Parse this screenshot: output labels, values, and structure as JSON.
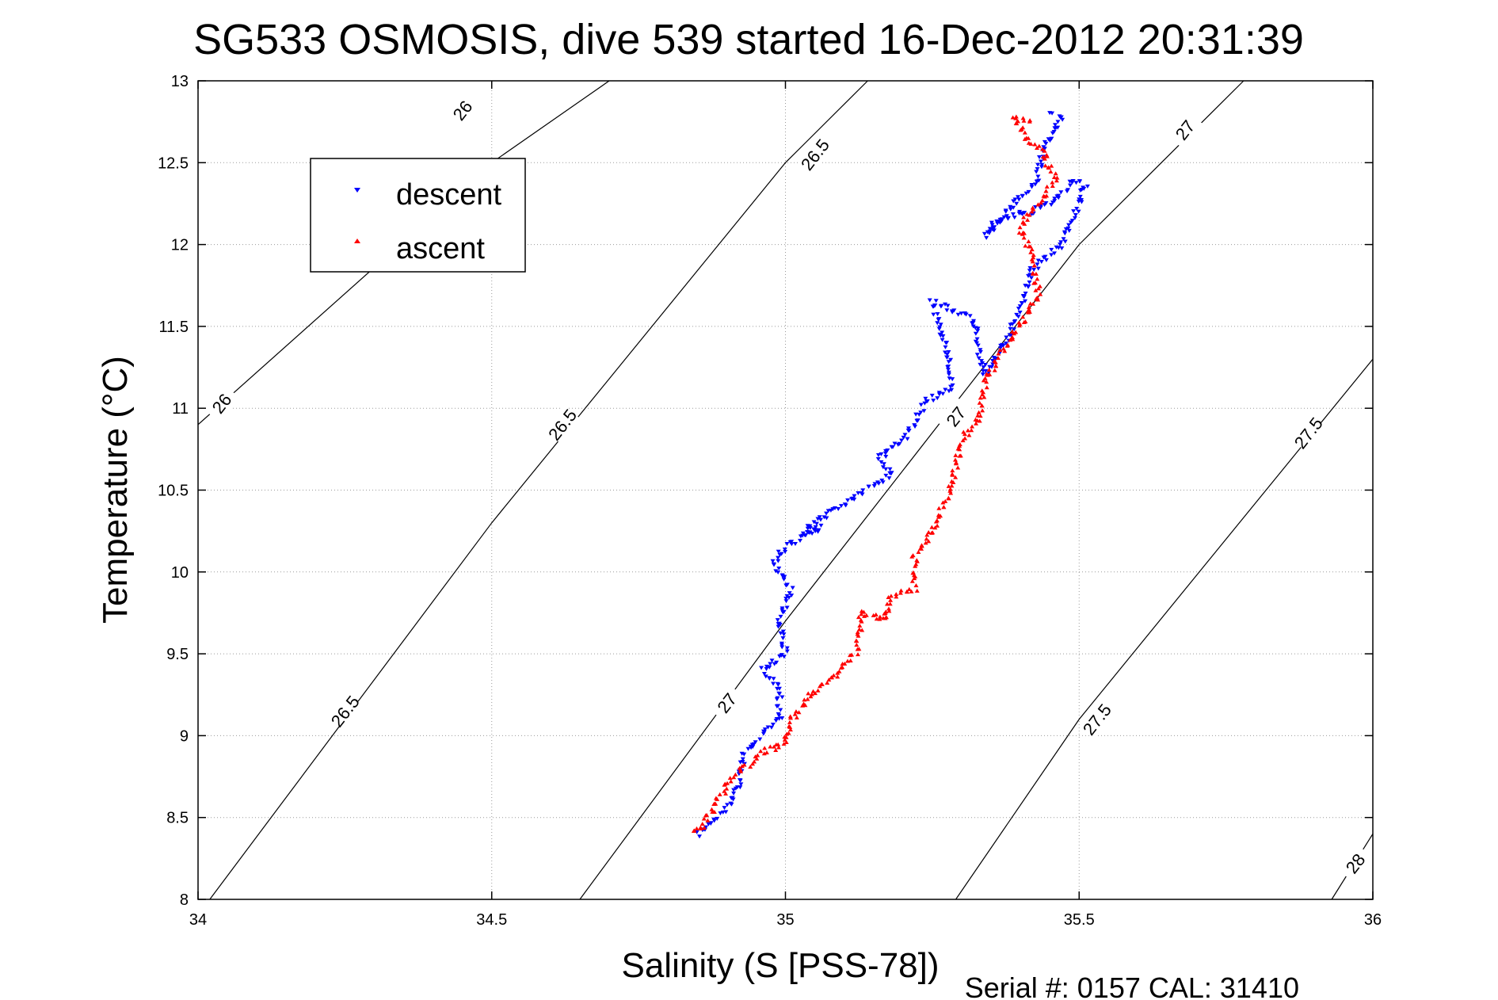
{
  "chart_data": {
    "type": "scatter",
    "title": "SG533 OSMOSIS, dive 539 started 16-Dec-2012 20:31:39",
    "xlabel": "Salinity (S [PSS-78])",
    "ylabel": "Temperature (°C)",
    "xlim": [
      34,
      36
    ],
    "ylim": [
      8,
      13
    ],
    "xticks": [
      "34",
      "34.5",
      "35",
      "35.5",
      "36"
    ],
    "yticks": [
      "8",
      "8.5",
      "9",
      "9.5",
      "10",
      "10.5",
      "11",
      "11.5",
      "12",
      "12.5",
      "13"
    ],
    "grid": true,
    "legend_position": "top-left",
    "footer": "Serial #: 0157  CAL: 31410",
    "contours": [
      {
        "label": "26",
        "points": [
          [
            34.0,
            10.9
          ],
          [
            34.5,
            12.5
          ],
          [
            34.7,
            13.0
          ]
        ],
        "labels": [
          {
            "text": "26",
            "x": 34.04,
            "y": 11.03
          },
          {
            "text": "26",
            "x": 34.45,
            "y": 12.82
          }
        ]
      },
      {
        "label": "26.5",
        "points": [
          [
            34.02,
            8.0
          ],
          [
            34.5,
            10.3
          ],
          [
            35.0,
            12.5
          ],
          [
            35.14,
            13.0
          ]
        ],
        "labels": [
          {
            "text": "26.5",
            "x": 34.25,
            "y": 9.15
          },
          {
            "text": "26.5",
            "x": 34.62,
            "y": 10.9
          },
          {
            "text": "26.5",
            "x": 35.05,
            "y": 12.55
          }
        ]
      },
      {
        "label": "27",
        "points": [
          [
            34.65,
            8.0
          ],
          [
            35.0,
            9.7
          ],
          [
            35.5,
            12.0
          ],
          [
            35.78,
            13.0
          ]
        ],
        "labels": [
          {
            "text": "27",
            "x": 34.9,
            "y": 9.2
          },
          {
            "text": "27",
            "x": 35.29,
            "y": 10.95
          },
          {
            "text": "27",
            "x": 35.68,
            "y": 12.7
          }
        ]
      },
      {
        "label": "27.5",
        "points": [
          [
            35.29,
            8.0
          ],
          [
            35.5,
            9.1
          ],
          [
            36.0,
            11.3
          ]
        ],
        "labels": [
          {
            "text": "27.5",
            "x": 35.53,
            "y": 9.1
          },
          {
            "text": "27.5",
            "x": 35.89,
            "y": 10.85
          }
        ]
      },
      {
        "label": "28",
        "points": [
          [
            35.93,
            8.0
          ],
          [
            36.0,
            8.4
          ]
        ],
        "labels": [
          {
            "text": "28",
            "x": 35.97,
            "y": 8.22
          }
        ]
      }
    ],
    "series": [
      {
        "name": "descent",
        "color": "#0000ff",
        "marker": "triangle-down",
        "path": [
          [
            34.85,
            8.4
          ],
          [
            34.87,
            8.45
          ],
          [
            34.9,
            8.55
          ],
          [
            34.92,
            8.7
          ],
          [
            34.93,
            8.9
          ],
          [
            34.96,
            9.0
          ],
          [
            34.99,
            9.1
          ],
          [
            34.99,
            9.3
          ],
          [
            34.96,
            9.4
          ],
          [
            35.0,
            9.5
          ],
          [
            34.99,
            9.7
          ],
          [
            35.01,
            9.9
          ],
          [
            34.98,
            10.05
          ],
          [
            35.0,
            10.15
          ],
          [
            35.06,
            10.27
          ],
          [
            35.03,
            10.25
          ],
          [
            35.18,
            10.6
          ],
          [
            35.16,
            10.7
          ],
          [
            35.21,
            10.85
          ],
          [
            35.24,
            11.05
          ],
          [
            35.28,
            11.12
          ],
          [
            35.28,
            11.3
          ],
          [
            35.25,
            11.65
          ],
          [
            35.32,
            11.55
          ],
          [
            35.33,
            11.35
          ],
          [
            35.34,
            11.2
          ],
          [
            35.38,
            11.45
          ],
          [
            35.4,
            11.6
          ],
          [
            35.42,
            11.85
          ],
          [
            35.47,
            12.0
          ],
          [
            35.51,
            12.35
          ],
          [
            35.49,
            12.4
          ],
          [
            35.46,
            12.28
          ],
          [
            35.42,
            12.2
          ],
          [
            35.36,
            12.15
          ],
          [
            35.34,
            12.05
          ],
          [
            35.43,
            12.4
          ],
          [
            35.44,
            12.6
          ],
          [
            35.47,
            12.78
          ],
          [
            35.45,
            12.8
          ]
        ]
      },
      {
        "name": "ascent",
        "color": "#ff0000",
        "marker": "triangle-up",
        "path": [
          [
            34.84,
            8.42
          ],
          [
            34.86,
            8.45
          ],
          [
            34.9,
            8.7
          ],
          [
            34.93,
            8.8
          ],
          [
            34.96,
            8.9
          ],
          [
            35.0,
            8.95
          ],
          [
            35.01,
            9.1
          ],
          [
            35.03,
            9.2
          ],
          [
            35.08,
            9.35
          ],
          [
            35.12,
            9.5
          ],
          [
            35.13,
            9.75
          ],
          [
            35.17,
            9.7
          ],
          [
            35.18,
            9.85
          ],
          [
            35.22,
            9.9
          ],
          [
            35.22,
            10.1
          ],
          [
            35.25,
            10.25
          ],
          [
            35.28,
            10.5
          ],
          [
            35.3,
            10.8
          ],
          [
            35.33,
            10.95
          ],
          [
            35.34,
            11.15
          ],
          [
            35.36,
            11.3
          ],
          [
            35.4,
            11.5
          ],
          [
            35.43,
            11.7
          ],
          [
            35.42,
            11.95
          ],
          [
            35.4,
            12.1
          ],
          [
            35.43,
            12.25
          ],
          [
            35.46,
            12.4
          ],
          [
            35.44,
            12.55
          ],
          [
            35.4,
            12.7
          ],
          [
            35.39,
            12.78
          ],
          [
            35.42,
            12.74
          ]
        ]
      }
    ]
  }
}
